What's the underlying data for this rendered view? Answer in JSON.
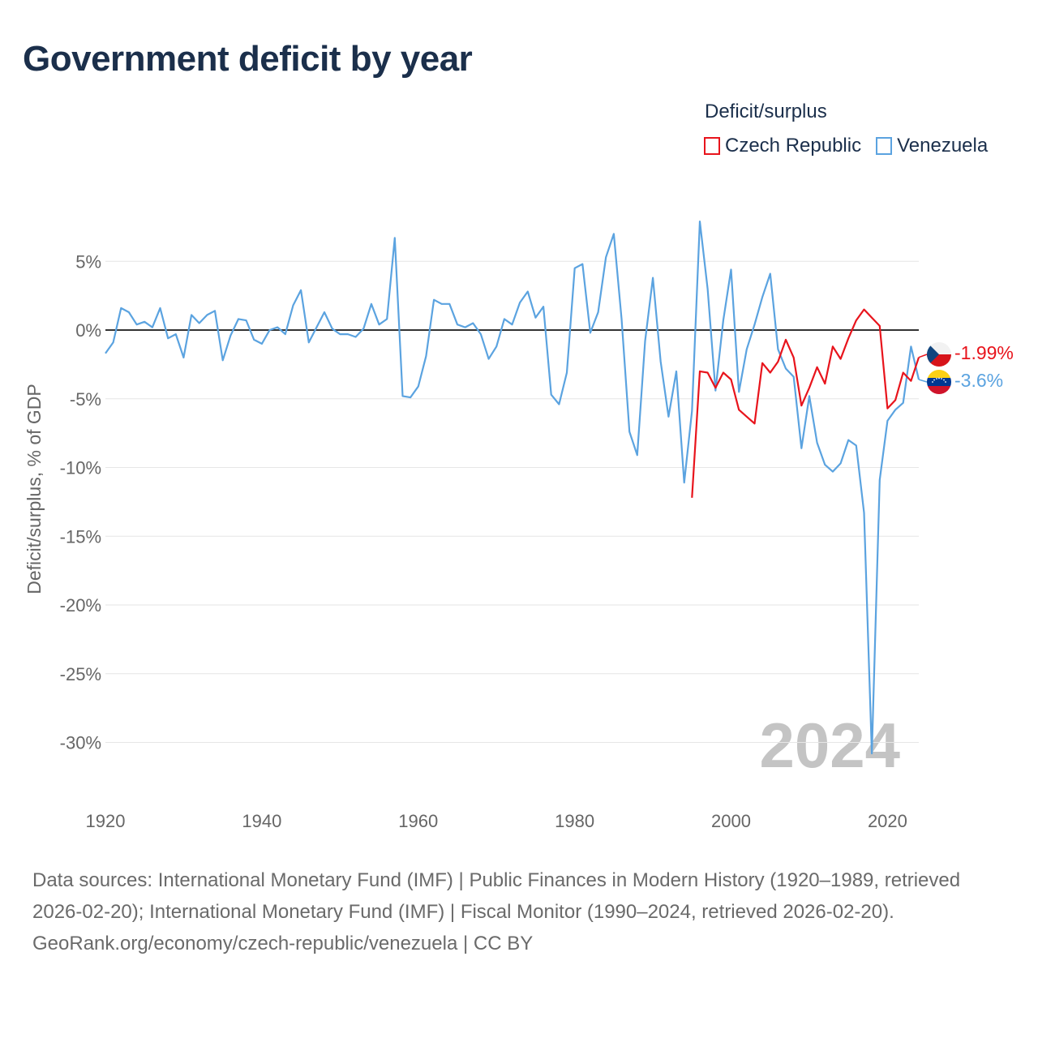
{
  "title": "Government deficit by year",
  "legend": {
    "title": "Deficit/surplus",
    "items": [
      {
        "label": "Czech Republic",
        "color": "#e8141c"
      },
      {
        "label": "Venezuela",
        "color": "#5ba3e0"
      }
    ]
  },
  "sources": {
    "line1": "Data sources: International Monetary Fund (IMF) | Public Finances in Modern History (1920–1989, retrieved 2026-02-20); International Monetary Fund (IMF) | Fiscal Monitor (1990–2024, retrieved 2026-02-20).",
    "line2": "GeoRank.org/economy/czech-republic/venezuela | CC BY"
  },
  "chart_data": {
    "type": "line",
    "title": "Government deficit by year",
    "xlabel": "",
    "ylabel": "Deficit/surplus, % of GDP",
    "xlim": [
      1920,
      2024
    ],
    "ylim": [
      -33,
      9
    ],
    "x_ticks": [
      1920,
      1940,
      1960,
      1980,
      2000,
      2020
    ],
    "y_ticks": [
      5,
      0,
      -5,
      -10,
      -15,
      -20,
      -25,
      -30
    ],
    "y_tick_labels": [
      "5%",
      "0%",
      "-5%",
      "-10%",
      "-15%",
      "-20%",
      "-25%",
      "-30%"
    ],
    "year_watermark": "2024",
    "series": [
      {
        "name": "Czech Republic",
        "color": "#e8141c",
        "end_label": "-1.99%",
        "points": [
          [
            1995,
            -12.2
          ],
          [
            1996,
            -3.0
          ],
          [
            1997,
            -3.1
          ],
          [
            1998,
            -4.2
          ],
          [
            1999,
            -3.1
          ],
          [
            2000,
            -3.6
          ],
          [
            2001,
            -5.8
          ],
          [
            2002,
            -6.3
          ],
          [
            2003,
            -6.8
          ],
          [
            2004,
            -2.4
          ],
          [
            2005,
            -3.1
          ],
          [
            2006,
            -2.3
          ],
          [
            2007,
            -0.7
          ],
          [
            2008,
            -2.0
          ],
          [
            2009,
            -5.5
          ],
          [
            2010,
            -4.2
          ],
          [
            2011,
            -2.7
          ],
          [
            2012,
            -3.9
          ],
          [
            2013,
            -1.2
          ],
          [
            2014,
            -2.1
          ],
          [
            2015,
            -0.6
          ],
          [
            2016,
            0.7
          ],
          [
            2017,
            1.5
          ],
          [
            2018,
            0.9
          ],
          [
            2019,
            0.3
          ],
          [
            2020,
            -5.7
          ],
          [
            2021,
            -5.1
          ],
          [
            2022,
            -3.1
          ],
          [
            2023,
            -3.7
          ],
          [
            2024,
            -1.99
          ]
        ]
      },
      {
        "name": "Venezuela",
        "color": "#5ba3e0",
        "end_label": "-3.6%",
        "points": [
          [
            1920,
            -1.7
          ],
          [
            1921,
            -0.9
          ],
          [
            1922,
            1.6
          ],
          [
            1923,
            1.3
          ],
          [
            1924,
            0.4
          ],
          [
            1925,
            0.6
          ],
          [
            1926,
            0.2
          ],
          [
            1927,
            1.6
          ],
          [
            1928,
            -0.6
          ],
          [
            1929,
            -0.3
          ],
          [
            1930,
            -2.0
          ],
          [
            1931,
            1.1
          ],
          [
            1932,
            0.5
          ],
          [
            1933,
            1.1
          ],
          [
            1934,
            1.4
          ],
          [
            1935,
            -2.2
          ],
          [
            1936,
            -0.4
          ],
          [
            1937,
            0.8
          ],
          [
            1938,
            0.7
          ],
          [
            1939,
            -0.7
          ],
          [
            1940,
            -1.0
          ],
          [
            1941,
            0.0
          ],
          [
            1942,
            0.2
          ],
          [
            1943,
            -0.3
          ],
          [
            1944,
            1.8
          ],
          [
            1945,
            2.9
          ],
          [
            1946,
            -0.9
          ],
          [
            1947,
            0.2
          ],
          [
            1948,
            1.3
          ],
          [
            1949,
            0.1
          ],
          [
            1950,
            -0.3
          ],
          [
            1951,
            -0.3
          ],
          [
            1952,
            -0.5
          ],
          [
            1953,
            0.1
          ],
          [
            1954,
            1.9
          ],
          [
            1955,
            0.4
          ],
          [
            1956,
            0.8
          ],
          [
            1957,
            6.7
          ],
          [
            1958,
            -4.8
          ],
          [
            1959,
            -4.9
          ],
          [
            1960,
            -4.1
          ],
          [
            1961,
            -1.9
          ],
          [
            1962,
            2.2
          ],
          [
            1963,
            1.9
          ],
          [
            1964,
            1.9
          ],
          [
            1965,
            0.4
          ],
          [
            1966,
            0.2
          ],
          [
            1967,
            0.5
          ],
          [
            1968,
            -0.3
          ],
          [
            1969,
            -2.1
          ],
          [
            1970,
            -1.2
          ],
          [
            1971,
            0.8
          ],
          [
            1972,
            0.4
          ],
          [
            1973,
            2.0
          ],
          [
            1974,
            2.8
          ],
          [
            1975,
            0.9
          ],
          [
            1976,
            1.7
          ],
          [
            1977,
            -4.7
          ],
          [
            1978,
            -5.4
          ],
          [
            1979,
            -3.1
          ],
          [
            1980,
            4.5
          ],
          [
            1981,
            4.8
          ],
          [
            1982,
            -0.2
          ],
          [
            1983,
            1.3
          ],
          [
            1984,
            5.3
          ],
          [
            1985,
            7.0
          ],
          [
            1986,
            0.8
          ],
          [
            1987,
            -7.4
          ],
          [
            1988,
            -9.1
          ],
          [
            1989,
            -0.8
          ],
          [
            1990,
            3.8
          ],
          [
            1991,
            -2.3
          ],
          [
            1992,
            -6.3
          ],
          [
            1993,
            -3.0
          ],
          [
            1994,
            -11.1
          ],
          [
            1995,
            -5.9
          ],
          [
            1996,
            7.9
          ],
          [
            1997,
            3.0
          ],
          [
            1998,
            -4.4
          ],
          [
            1999,
            0.7
          ],
          [
            2000,
            4.4
          ],
          [
            2001,
            -4.5
          ],
          [
            2002,
            -1.4
          ],
          [
            2003,
            0.4
          ],
          [
            2004,
            2.4
          ],
          [
            2005,
            4.1
          ],
          [
            2006,
            -1.4
          ],
          [
            2007,
            -2.8
          ],
          [
            2008,
            -3.4
          ],
          [
            2009,
            -8.6
          ],
          [
            2010,
            -4.8
          ],
          [
            2011,
            -8.2
          ],
          [
            2012,
            -9.8
          ],
          [
            2013,
            -10.3
          ],
          [
            2014,
            -9.7
          ],
          [
            2015,
            -8.0
          ],
          [
            2016,
            -8.4
          ],
          [
            2017,
            -13.3
          ],
          [
            2018,
            -30.8
          ],
          [
            2019,
            -10.9
          ],
          [
            2020,
            -6.6
          ],
          [
            2021,
            -5.8
          ],
          [
            2022,
            -5.3
          ],
          [
            2023,
            -1.2
          ],
          [
            2024,
            -3.6
          ]
        ]
      }
    ]
  }
}
